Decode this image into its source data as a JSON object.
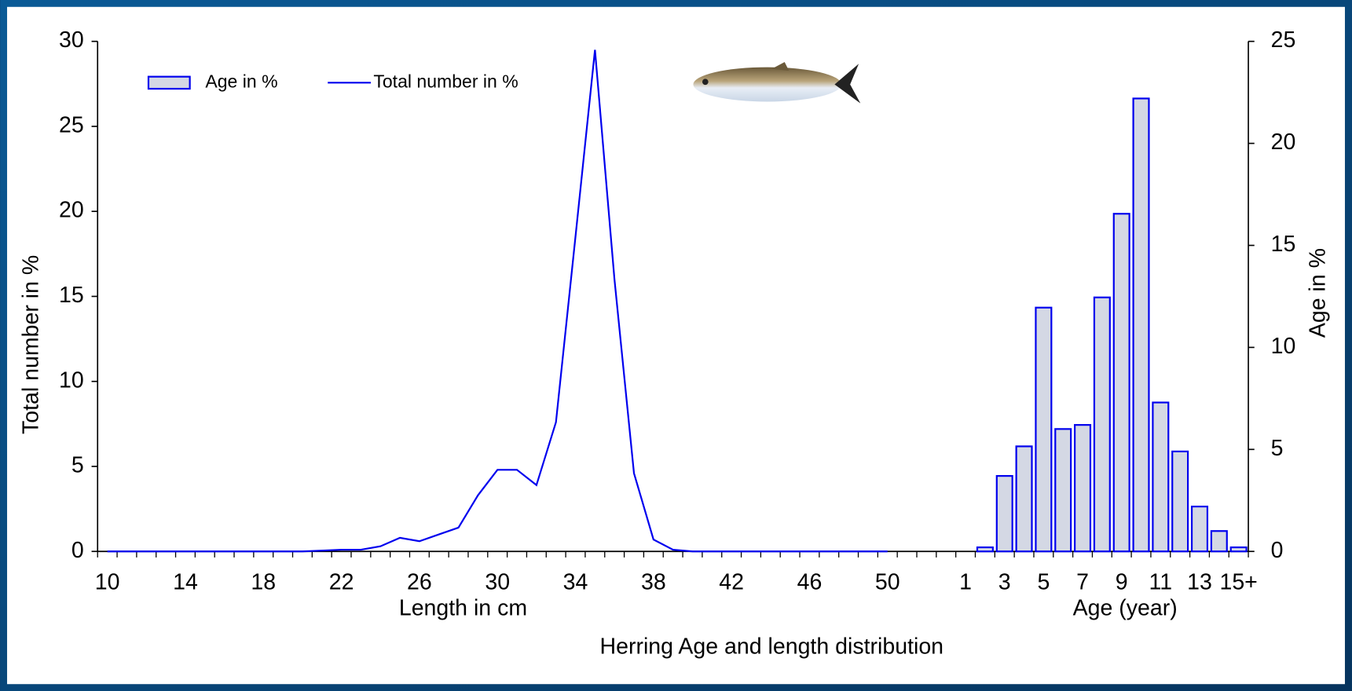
{
  "chart_data": {
    "type": "combo",
    "title": "Herring  Age and length distribution",
    "x_label_left": "Length in cm",
    "x_label_right": "Age (year)",
    "y_label": "Total number in %",
    "y2_label": "Age in %",
    "categories": [
      "10",
      null,
      null,
      null,
      "14",
      null,
      null,
      null,
      "18",
      null,
      null,
      null,
      "22",
      null,
      null,
      null,
      "26",
      null,
      null,
      null,
      "30",
      null,
      null,
      null,
      "34",
      null,
      null,
      null,
      "38",
      null,
      null,
      null,
      "42",
      null,
      null,
      null,
      "46",
      null,
      null,
      null,
      "50",
      null,
      null,
      null,
      "1",
      null,
      "3",
      null,
      "5",
      null,
      "7",
      null,
      "9",
      null,
      "11",
      null,
      "13",
      null,
      "15+"
    ],
    "ylim": [
      0,
      30
    ],
    "yticks": [
      0,
      5,
      10,
      15,
      20,
      25,
      30
    ],
    "y2lim": [
      0,
      25
    ],
    "y2ticks": [
      0,
      5,
      10,
      15,
      20,
      25
    ],
    "legend": "top-left",
    "series": [
      {
        "name": "Age in %",
        "type": "bar",
        "axis": "y2",
        "color": "#0000ee",
        "fill": "#d4d8e4",
        "values": [
          null,
          null,
          null,
          null,
          null,
          null,
          null,
          null,
          null,
          null,
          null,
          null,
          null,
          null,
          null,
          null,
          null,
          null,
          null,
          null,
          null,
          null,
          null,
          null,
          null,
          null,
          null,
          null,
          null,
          null,
          null,
          null,
          null,
          null,
          null,
          null,
          null,
          null,
          null,
          null,
          null,
          null,
          null,
          null,
          0,
          0.2,
          3.7,
          5.15,
          11.95,
          6.0,
          6.2,
          12.45,
          16.55,
          22.2,
          7.3,
          4.9,
          2.2,
          1.0,
          0.2
        ]
      },
      {
        "name": "Total number in %",
        "type": "line",
        "color": "#0000ee",
        "values": [
          0,
          0,
          0,
          0,
          0,
          0,
          0,
          0,
          0,
          0,
          0,
          0.05,
          0.1,
          0.1,
          0.3,
          0.8,
          0.6,
          1.0,
          1.4,
          3.3,
          4.8,
          4.8,
          3.9,
          7.6,
          18.5,
          29.5,
          16,
          4.6,
          0.7,
          0.1,
          0,
          0,
          0,
          0,
          0,
          0,
          0,
          0,
          0,
          0,
          0,
          null,
          null,
          null,
          null,
          null,
          null,
          null,
          null,
          null,
          null,
          null,
          null,
          null,
          null,
          null,
          null,
          null,
          null
        ]
      }
    ]
  }
}
